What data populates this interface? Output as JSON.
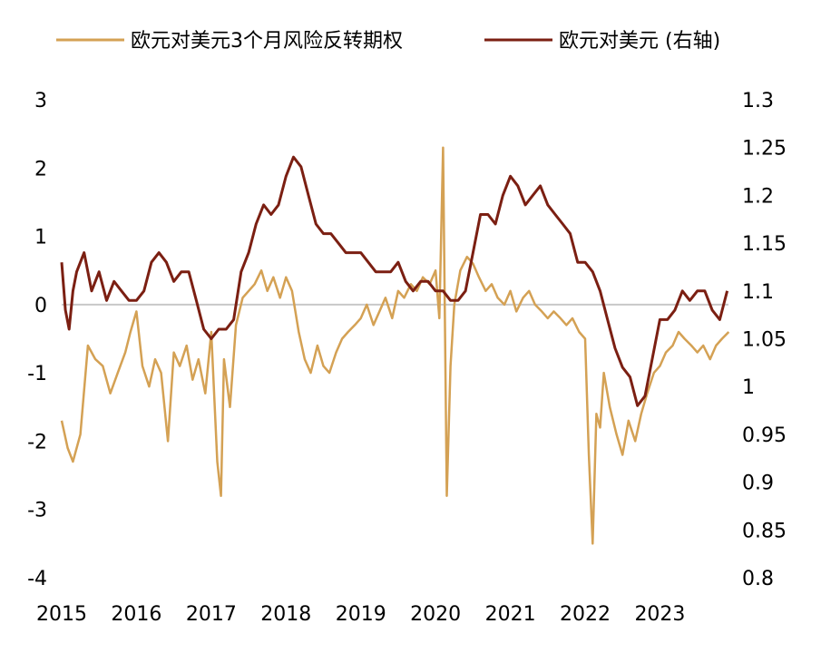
{
  "chart_data": {
    "type": "line",
    "title": "",
    "legend": {
      "placement": "top",
      "entries": [
        {
          "label": "欧元对美元3个月风险反转期权",
          "color": "#D4A154"
        },
        {
          "label": "欧元对美元 (右轴)",
          "color": "#7B1F12"
        }
      ]
    },
    "x_axis": {
      "type": "time",
      "range": [
        "2015-01",
        "2023-12"
      ],
      "ticks": [
        "2015",
        "2016",
        "2017",
        "2018",
        "2019",
        "2020",
        "2021",
        "2022",
        "2023"
      ]
    },
    "y_left": {
      "range": [
        -4,
        3
      ],
      "ticks": [
        "3",
        "2",
        "1",
        "0",
        "-1",
        "-2",
        "-3",
        "-4"
      ],
      "zero_line": true
    },
    "y_right": {
      "range": [
        0.8,
        1.3
      ],
      "ticks": [
        "1.3",
        "1.25",
        "1.2",
        "1.15",
        "1.1",
        "1.05",
        "1",
        "0.95",
        "0.9",
        "0.85",
        "0.8"
      ]
    },
    "series": [
      {
        "name": "欧元对美元3个月风险反转期权",
        "axis": "left",
        "color": "#D4A154",
        "x": [
          2015.0,
          2015.08,
          2015.15,
          2015.25,
          2015.35,
          2015.45,
          2015.55,
          2015.65,
          2015.75,
          2015.85,
          2015.92,
          2016.0,
          2016.08,
          2016.17,
          2016.25,
          2016.33,
          2016.42,
          2016.5,
          2016.58,
          2016.67,
          2016.75,
          2016.83,
          2016.92,
          2017.0,
          2017.08,
          2017.13,
          2017.17,
          2017.25,
          2017.33,
          2017.42,
          2017.5,
          2017.58,
          2017.67,
          2017.75,
          2017.83,
          2017.92,
          2018.0,
          2018.08,
          2018.17,
          2018.25,
          2018.33,
          2018.42,
          2018.5,
          2018.58,
          2018.67,
          2018.75,
          2018.83,
          2018.92,
          2019.0,
          2019.08,
          2019.17,
          2019.25,
          2019.33,
          2019.42,
          2019.5,
          2019.58,
          2019.67,
          2019.75,
          2019.83,
          2019.92,
          2020.0,
          2020.05,
          2020.1,
          2020.15,
          2020.2,
          2020.25,
          2020.33,
          2020.42,
          2020.5,
          2020.58,
          2020.67,
          2020.75,
          2020.83,
          2020.92,
          2021.0,
          2021.08,
          2021.17,
          2021.25,
          2021.33,
          2021.42,
          2021.5,
          2021.58,
          2021.67,
          2021.75,
          2021.83,
          2021.92,
          2022.0,
          2022.05,
          2022.1,
          2022.15,
          2022.2,
          2022.25,
          2022.33,
          2022.42,
          2022.5,
          2022.58,
          2022.67,
          2022.75,
          2022.83,
          2022.92,
          2023.0,
          2023.08,
          2023.17,
          2023.25,
          2023.33,
          2023.42,
          2023.5,
          2023.58,
          2023.67,
          2023.75,
          2023.83,
          2023.92
        ],
        "values": [
          -1.7,
          -2.1,
          -2.3,
          -1.9,
          -0.6,
          -0.8,
          -0.9,
          -1.3,
          -1.0,
          -0.7,
          -0.4,
          -0.1,
          -0.9,
          -1.2,
          -0.8,
          -1.0,
          -2.0,
          -0.7,
          -0.9,
          -0.6,
          -1.1,
          -0.8,
          -1.3,
          -0.4,
          -2.3,
          -2.8,
          -0.8,
          -1.5,
          -0.3,
          0.1,
          0.2,
          0.3,
          0.5,
          0.2,
          0.4,
          0.1,
          0.4,
          0.2,
          -0.4,
          -0.8,
          -1.0,
          -0.6,
          -0.9,
          -1.0,
          -0.7,
          -0.5,
          -0.4,
          -0.3,
          -0.2,
          0.0,
          -0.3,
          -0.1,
          0.1,
          -0.2,
          0.2,
          0.1,
          0.3,
          0.2,
          0.4,
          0.3,
          0.5,
          -0.2,
          2.3,
          -2.8,
          -0.9,
          0.0,
          0.5,
          0.7,
          0.6,
          0.4,
          0.2,
          0.3,
          0.1,
          0.0,
          0.2,
          -0.1,
          0.1,
          0.2,
          0.0,
          -0.1,
          -0.2,
          -0.1,
          -0.2,
          -0.3,
          -0.2,
          -0.4,
          -0.5,
          -2.2,
          -3.5,
          -1.6,
          -1.8,
          -1.0,
          -1.5,
          -1.9,
          -2.2,
          -1.7,
          -2.0,
          -1.6,
          -1.3,
          -1.0,
          -0.9,
          -0.7,
          -0.6,
          -0.4,
          -0.5,
          -0.6,
          -0.7,
          -0.6,
          -0.8,
          -0.6,
          -0.5,
          -0.4
        ]
      },
      {
        "name": "欧元对美元 (右轴)",
        "axis": "right",
        "color": "#7B1F12",
        "x": [
          2015.0,
          2015.05,
          2015.1,
          2015.15,
          2015.2,
          2015.3,
          2015.4,
          2015.5,
          2015.6,
          2015.7,
          2015.8,
          2015.9,
          2016.0,
          2016.1,
          2016.2,
          2016.3,
          2016.4,
          2016.5,
          2016.6,
          2016.7,
          2016.8,
          2016.9,
          2017.0,
          2017.1,
          2017.2,
          2017.3,
          2017.4,
          2017.5,
          2017.6,
          2017.7,
          2017.8,
          2017.9,
          2018.0,
          2018.1,
          2018.2,
          2018.3,
          2018.4,
          2018.5,
          2018.6,
          2018.7,
          2018.8,
          2018.9,
          2019.0,
          2019.1,
          2019.2,
          2019.3,
          2019.4,
          2019.5,
          2019.6,
          2019.7,
          2019.8,
          2019.9,
          2020.0,
          2020.1,
          2020.2,
          2020.3,
          2020.4,
          2020.5,
          2020.6,
          2020.7,
          2020.8,
          2020.9,
          2021.0,
          2021.1,
          2021.2,
          2021.3,
          2021.4,
          2021.5,
          2021.6,
          2021.7,
          2021.8,
          2021.9,
          2022.0,
          2022.1,
          2022.2,
          2022.3,
          2022.4,
          2022.5,
          2022.6,
          2022.7,
          2022.8,
          2022.9,
          2023.0,
          2023.1,
          2023.2,
          2023.3,
          2023.4,
          2023.5,
          2023.6,
          2023.7,
          2023.8,
          2023.9
        ],
        "values": [
          1.13,
          1.08,
          1.06,
          1.1,
          1.12,
          1.14,
          1.1,
          1.12,
          1.09,
          1.11,
          1.1,
          1.09,
          1.09,
          1.1,
          1.13,
          1.14,
          1.13,
          1.11,
          1.12,
          1.12,
          1.09,
          1.06,
          1.05,
          1.06,
          1.06,
          1.07,
          1.12,
          1.14,
          1.17,
          1.19,
          1.18,
          1.19,
          1.22,
          1.24,
          1.23,
          1.2,
          1.17,
          1.16,
          1.16,
          1.15,
          1.14,
          1.14,
          1.14,
          1.13,
          1.12,
          1.12,
          1.12,
          1.13,
          1.11,
          1.1,
          1.11,
          1.11,
          1.1,
          1.1,
          1.09,
          1.09,
          1.1,
          1.14,
          1.18,
          1.18,
          1.17,
          1.2,
          1.22,
          1.21,
          1.19,
          1.2,
          1.21,
          1.19,
          1.18,
          1.17,
          1.16,
          1.13,
          1.13,
          1.12,
          1.1,
          1.07,
          1.04,
          1.02,
          1.01,
          0.98,
          0.99,
          1.03,
          1.07,
          1.07,
          1.08,
          1.1,
          1.09,
          1.1,
          1.1,
          1.08,
          1.07,
          1.1
        ]
      }
    ]
  }
}
